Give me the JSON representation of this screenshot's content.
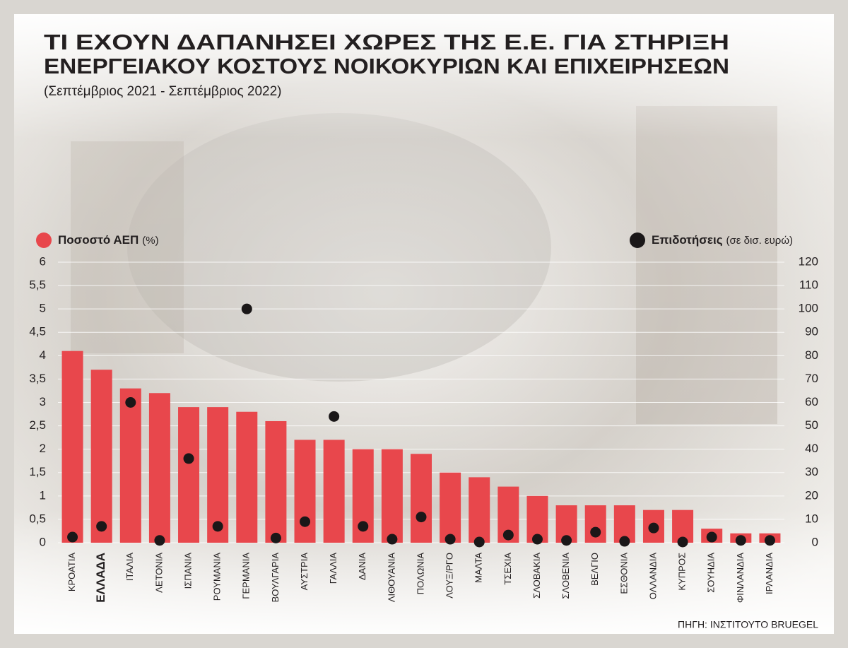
{
  "chart_data": {
    "type": "bar_dot",
    "title": [
      "ΤΙ ΕΧΟΥΝ ΔΑΠΑΝΗΣΕΙ ΧΩΡΕΣ ΤΗΣ Ε.Ε. ΓΙΑ ΣΤΗΡΙΞΗ",
      "ΕΝΕΡΓΕΙΑΚΟΥ ΚΟΣΤΟΥΣ ΝΟΙΚΟΚΥΡΙΩΝ ΚΑΙ ΕΠΙΧΕΙΡΗΣΕΩΝ"
    ],
    "subtitle": "(Σεπτέμβριος 2021 - Σεπτέμβριος 2022)",
    "source": "ΠΗΓΗ: ΙΝΣΤΙΤΟΥΤΟ BRUEGEL",
    "categories": [
      "ΚΡΟΑΤΙΑ",
      "ΕΛΛΑΔΑ",
      "ΙΤΑΛΙΑ",
      "ΛΕΤΟΝΙΑ",
      "ΙΣΠΑΝΙΑ",
      "ΡΟΥΜΑΝΙΑ",
      "ΓΕΡΜΑΝΙΑ",
      "ΒΟΥΛΓΑΡΙΑ",
      "ΑΥΣΤΡΙΑ",
      "ΓΑΛΛΙΑ",
      "ΔΑΝΙΑ",
      "ΛΙΘΟΥΑΝΙΑ",
      "ΠΟΛΩΝΙΑ",
      "ΛΟΥΞ/ΡΓΟ",
      "ΜΑΛΤΑ",
      "ΤΣΕΧΙΑ",
      "ΣΛΟΒΑΚΙΑ",
      "ΣΛΟΒΕΝΙΑ",
      "ΒΕΛΓΙΟ",
      "ΕΣΘΟΝΙΑ",
      "ΟΛΛΑΝΔΙΑ",
      "ΚΥΠΡΟΣ",
      "ΣΟΥΗΔΙΑ",
      "ΦΙΝΛΑΝΔΙΑ",
      "ΙΡΛΑΝΔΙΑ"
    ],
    "highlight_category": 1,
    "series": [
      {
        "name": "Ποσοστό ΑΕΠ",
        "unit": "(%)",
        "color": "#e8474c",
        "mark": "bar",
        "values": [
          4.1,
          3.7,
          3.3,
          3.2,
          2.9,
          2.9,
          2.8,
          2.6,
          2.2,
          2.2,
          2.0,
          2.0,
          1.9,
          1.5,
          1.4,
          1.2,
          1.0,
          0.8,
          0.8,
          0.8,
          0.7,
          0.7,
          0.3,
          0.2,
          0.2
        ]
      },
      {
        "name": "Επιδοτήσεις",
        "unit": "(σε δισ. ευρώ)",
        "color": "#1a1718",
        "mark": "dot",
        "axis": "y2",
        "values": [
          2.4,
          7,
          60,
          1,
          36,
          7,
          100,
          2,
          9,
          54,
          7,
          1.5,
          11,
          1.5,
          0.3,
          3.3,
          1.5,
          1,
          4.5,
          0.6,
          6.3,
          0.3,
          2.4,
          1,
          1
        ]
      }
    ],
    "ylim": [
      0,
      6
    ],
    "yticks": [
      0,
      {
        "value": 0.5,
        "label": "0,5"
      },
      1,
      {
        "value": 1.5,
        "label": "1,5"
      },
      2,
      {
        "value": 2.5,
        "label": "2,5"
      },
      3,
      {
        "value": 3.5,
        "label": "3,5"
      },
      4,
      {
        "value": 4.5,
        "label": "4,5"
      },
      5,
      {
        "value": 5.5,
        "label": "5,5"
      },
      6
    ],
    "y2lim": [
      0,
      120
    ],
    "y2ticks": [
      0,
      10,
      20,
      30,
      40,
      50,
      60,
      70,
      80,
      90,
      100,
      110,
      120
    ],
    "grid": true
  }
}
